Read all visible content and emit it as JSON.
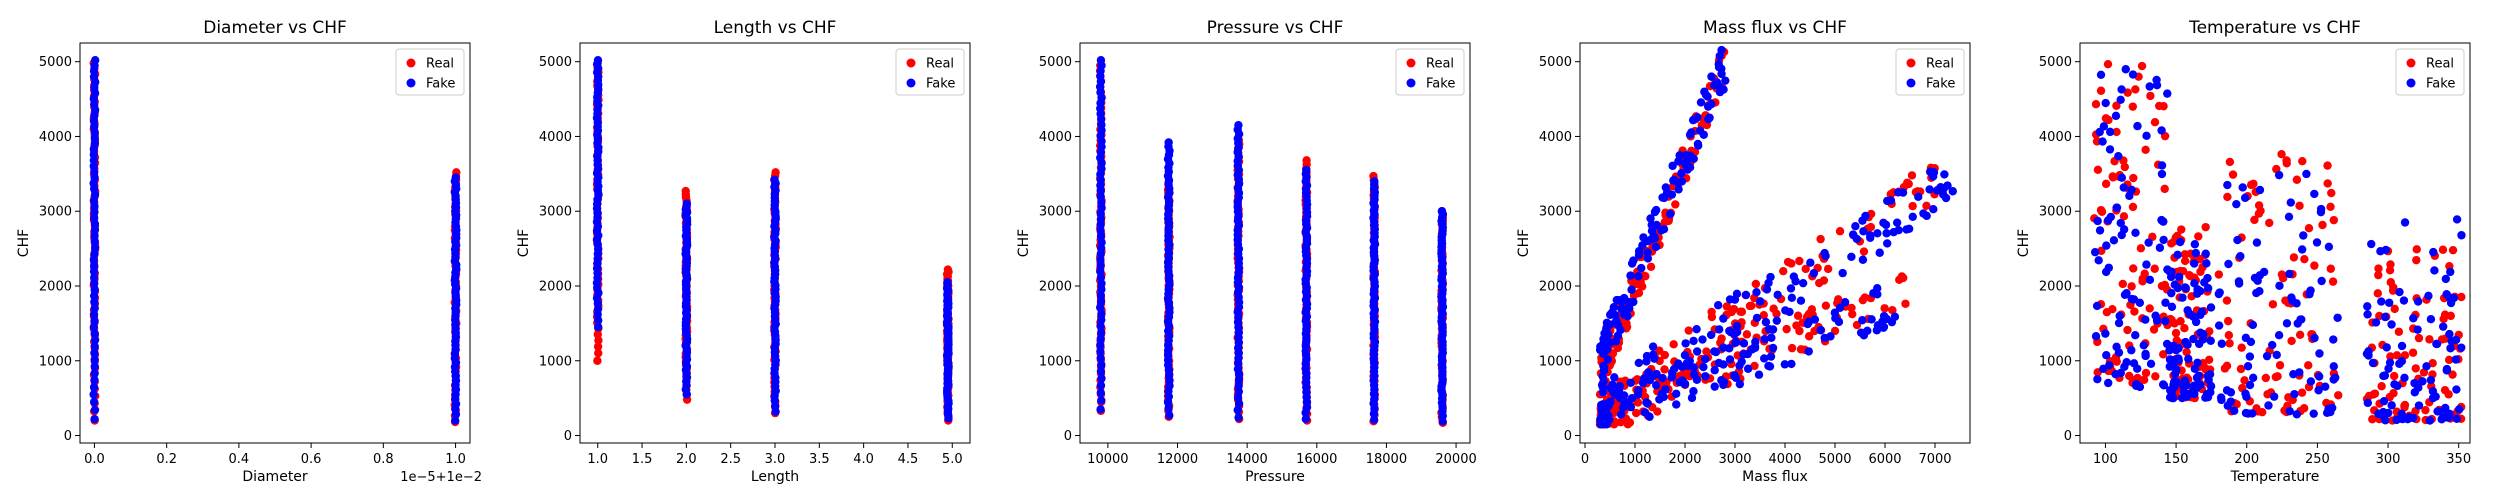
{
  "figure": {
    "colors": {
      "real": "#ff0000",
      "fake": "#0000ff"
    },
    "legend_labels": [
      "Real",
      "Fake"
    ]
  },
  "chart_data": [
    {
      "type": "scatter",
      "title": "Diameter vs CHF",
      "xlabel": "Diameter",
      "ylabel": "CHF",
      "x_offset_text": "1e−5+1e−2",
      "xlim": [
        -0.04,
        1.04
      ],
      "ylim": [
        -100,
        5250
      ],
      "xticks": [
        0.0,
        0.2,
        0.4,
        0.6,
        0.8,
        1.0
      ],
      "xtick_labels": [
        "0.0",
        "0.2",
        "0.4",
        "0.6",
        "0.8",
        "1.0"
      ],
      "yticks": [
        0,
        1000,
        2000,
        3000,
        4000,
        5000
      ],
      "ytick_labels": [
        "0",
        "1000",
        "2000",
        "3000",
        "4000",
        "5000"
      ],
      "legend_position": "top-right",
      "series": [
        {
          "name": "Real",
          "color": "#ff0000",
          "groups": [
            {
              "x": 0.0,
              "ymin": 200,
              "ymax": 4980
            },
            {
              "x": 1.0,
              "ymin": 180,
              "ymax": 3520
            }
          ]
        },
        {
          "name": "Fake",
          "color": "#0000ff",
          "groups": [
            {
              "x": 0.0,
              "ymin": 220,
              "ymax": 5020
            },
            {
              "x": 1.0,
              "ymin": 200,
              "ymax": 3450
            }
          ]
        }
      ]
    },
    {
      "type": "scatter",
      "title": "Length vs CHF",
      "xlabel": "Length",
      "ylabel": "CHF",
      "xlim": [
        0.8,
        5.2
      ],
      "ylim": [
        -100,
        5250
      ],
      "xticks": [
        1.0,
        1.5,
        2.0,
        2.5,
        3.0,
        3.5,
        4.0,
        4.5,
        5.0
      ],
      "xtick_labels": [
        "1.0",
        "1.5",
        "2.0",
        "2.5",
        "3.0",
        "3.5",
        "4.0",
        "4.5",
        "5.0"
      ],
      "yticks": [
        0,
        1000,
        2000,
        3000,
        4000,
        5000
      ],
      "ytick_labels": [
        "0",
        "1000",
        "2000",
        "3000",
        "4000",
        "5000"
      ],
      "legend_position": "top-right",
      "series": [
        {
          "name": "Real",
          "color": "#ff0000",
          "groups": [
            {
              "x": 1.0,
              "ymin": 1000,
              "ymax": 4980
            },
            {
              "x": 2.0,
              "ymin": 480,
              "ymax": 3270
            },
            {
              "x": 3.0,
              "ymin": 300,
              "ymax": 3520
            },
            {
              "x": 4.95,
              "ymin": 200,
              "ymax": 2220
            }
          ]
        },
        {
          "name": "Fake",
          "color": "#0000ff",
          "groups": [
            {
              "x": 1.0,
              "ymin": 1450,
              "ymax": 5020
            },
            {
              "x": 2.0,
              "ymin": 550,
              "ymax": 3100
            },
            {
              "x": 3.0,
              "ymin": 320,
              "ymax": 3420
            },
            {
              "x": 4.95,
              "ymin": 230,
              "ymax": 2050
            }
          ]
        }
      ]
    },
    {
      "type": "scatter",
      "title": "Pressure vs CHF",
      "xlabel": "Pressure",
      "ylabel": "CHF",
      "xlim": [
        9200,
        20400
      ],
      "ylim": [
        -100,
        5250
      ],
      "xticks": [
        10000,
        12000,
        14000,
        16000,
        18000,
        20000
      ],
      "xtick_labels": [
        "10000",
        "12000",
        "14000",
        "16000",
        "18000",
        "20000"
      ],
      "yticks": [
        0,
        1000,
        2000,
        3000,
        4000,
        5000
      ],
      "ytick_labels": [
        "0",
        "1000",
        "2000",
        "3000",
        "4000",
        "5000"
      ],
      "legend_position": "top-right",
      "series": [
        {
          "name": "Real",
          "color": "#ff0000",
          "groups": [
            {
              "x": 9800,
              "ymin": 330,
              "ymax": 4950
            },
            {
              "x": 11750,
              "ymin": 250,
              "ymax": 3380
            },
            {
              "x": 13750,
              "ymin": 220,
              "ymax": 3950
            },
            {
              "x": 15700,
              "ymin": 200,
              "ymax": 3680
            },
            {
              "x": 17650,
              "ymin": 190,
              "ymax": 3470
            },
            {
              "x": 19600,
              "ymin": 170,
              "ymax": 3000
            }
          ]
        },
        {
          "name": "Fake",
          "color": "#0000ff",
          "groups": [
            {
              "x": 9800,
              "ymin": 350,
              "ymax": 5020
            },
            {
              "x": 11750,
              "ymin": 270,
              "ymax": 3920
            },
            {
              "x": 13750,
              "ymin": 240,
              "ymax": 4150
            },
            {
              "x": 15700,
              "ymin": 220,
              "ymax": 3550
            },
            {
              "x": 17650,
              "ymin": 210,
              "ymax": 3400
            },
            {
              "x": 19600,
              "ymin": 190,
              "ymax": 3000
            }
          ]
        }
      ]
    },
    {
      "type": "scatter",
      "title": "Mass flux vs CHF",
      "xlabel": "Mass flux",
      "ylabel": "CHF",
      "xlim": [
        -100,
        7700
      ],
      "ylim": [
        -100,
        5250
      ],
      "xticks": [
        0,
        1000,
        2000,
        3000,
        4000,
        5000,
        6000,
        7000
      ],
      "xtick_labels": [
        "0",
        "1000",
        "2000",
        "3000",
        "4000",
        "5000",
        "6000",
        "7000"
      ],
      "yticks": [
        0,
        1000,
        2000,
        3000,
        4000,
        5000
      ],
      "ytick_labels": [
        "0",
        "1000",
        "2000",
        "3000",
        "4000",
        "5000"
      ],
      "legend_position": "top-right",
      "series": [
        {
          "name": "Real",
          "color": "#ff0000",
          "trends": [
            {
              "x0": 300,
              "y0": 800,
              "x1": 2800,
              "y1": 5000,
              "spread": 260
            },
            {
              "x0": 300,
              "y0": 300,
              "x1": 7200,
              "y1": 3500,
              "spread": 320
            },
            {
              "x0": 300,
              "y0": 200,
              "x1": 6500,
              "y1": 2000,
              "spread": 260
            }
          ]
        },
        {
          "name": "Fake",
          "color": "#0000ff",
          "trends": [
            {
              "x0": 300,
              "y0": 1000,
              "x1": 2850,
              "y1": 5050,
              "spread": 300
            },
            {
              "x0": 300,
              "y0": 400,
              "x1": 7400,
              "y1": 3400,
              "spread": 360
            },
            {
              "x0": 300,
              "y0": 250,
              "x1": 6200,
              "y1": 1800,
              "spread": 300
            }
          ]
        }
      ]
    },
    {
      "type": "scatter",
      "title": "Temperature vs CHF",
      "xlabel": "Temperature",
      "ylabel": "CHF",
      "xlim": [
        82,
        358
      ],
      "ylim": [
        -100,
        5250
      ],
      "xticks": [
        100,
        150,
        200,
        250,
        300,
        350
      ],
      "xtick_labels": [
        "100",
        "150",
        "200",
        "250",
        "300",
        "350"
      ],
      "yticks": [
        0,
        1000,
        2000,
        3000,
        4000,
        5000
      ],
      "ytick_labels": [
        "0",
        "1000",
        "2000",
        "3000",
        "4000",
        "5000"
      ],
      "legend_position": "top-right",
      "series": [
        {
          "name": "Real",
          "color": "#ff0000",
          "bands": [
            {
              "xmin": 92,
              "xmax": 145,
              "ymin": 700,
              "ymax": 5000
            },
            {
              "xmin": 145,
              "xmax": 175,
              "ymin": 500,
              "ymax": 2800
            },
            {
              "xmin": 180,
              "xmax": 265,
              "ymin": 300,
              "ymax": 3800
            },
            {
              "xmin": 285,
              "xmax": 352,
              "ymin": 200,
              "ymax": 2500
            }
          ]
        },
        {
          "name": "Fake",
          "color": "#0000ff",
          "bands": [
            {
              "xmin": 92,
              "xmax": 145,
              "ymin": 650,
              "ymax": 5020
            },
            {
              "xmin": 145,
              "xmax": 175,
              "ymin": 500,
              "ymax": 2600
            },
            {
              "xmin": 180,
              "xmax": 265,
              "ymin": 280,
              "ymax": 3500
            },
            {
              "xmin": 285,
              "xmax": 352,
              "ymin": 200,
              "ymax": 2950
            }
          ]
        }
      ]
    }
  ]
}
